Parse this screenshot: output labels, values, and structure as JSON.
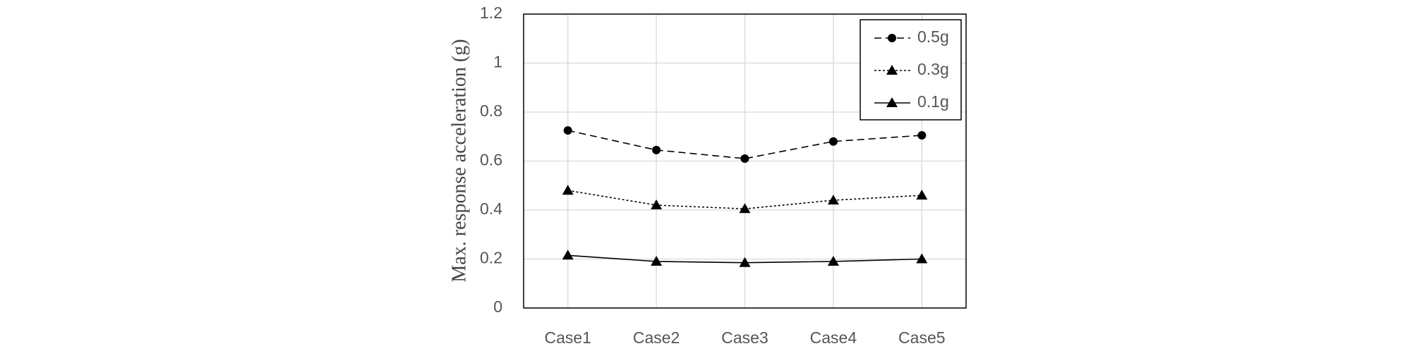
{
  "chart_data": {
    "type": "line",
    "ylabel": "Max. response acceleration (g)",
    "categories": [
      "Case1",
      "Case2",
      "Case3",
      "Case4",
      "Case5"
    ],
    "series": [
      {
        "name": "0.5g",
        "color": "#000000",
        "dash": "dashed",
        "marker": "circle",
        "values": [
          0.725,
          0.645,
          0.61,
          0.68,
          0.705
        ]
      },
      {
        "name": "0.3g",
        "color": "#000000",
        "dash": "dotted",
        "marker": "triangle",
        "values": [
          0.48,
          0.42,
          0.405,
          0.44,
          0.46
        ]
      },
      {
        "name": "0.1g",
        "color": "#000000",
        "dash": "solid",
        "marker": "triangle",
        "values": [
          0.215,
          0.19,
          0.185,
          0.19,
          0.2
        ]
      }
    ],
    "ylim": [
      0,
      1.2
    ],
    "yticks": [
      0,
      0.2,
      0.4,
      0.6,
      0.8,
      1,
      1.2
    ],
    "grid": true,
    "legend": "top-right"
  }
}
